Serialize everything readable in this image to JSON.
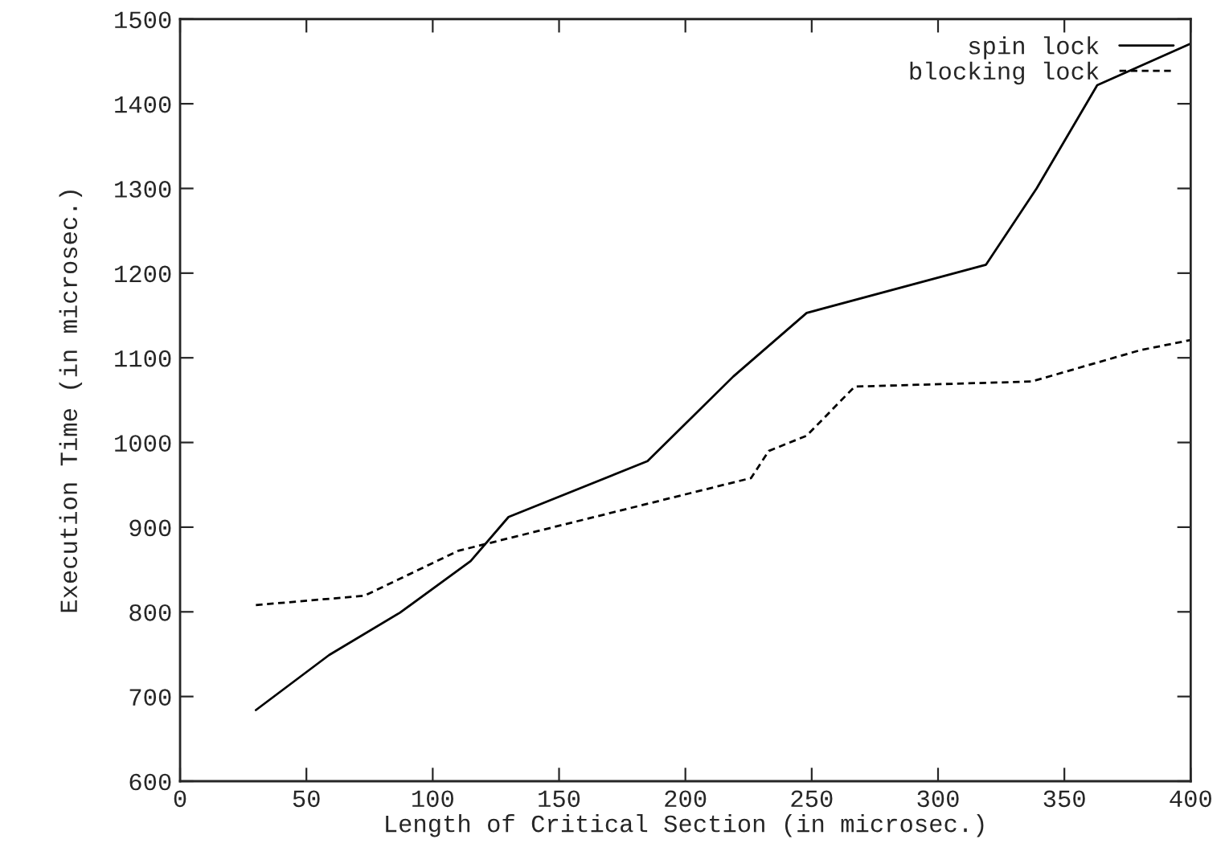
{
  "chart_data": {
    "type": "line",
    "xlabel": "Length of Critical Section (in microsec.)",
    "ylabel": "Execution Time (in microsec.)",
    "xlim": [
      0,
      400
    ],
    "xticks": [
      0,
      50,
      100,
      150,
      200,
      250,
      300,
      350,
      400
    ],
    "ylim": [
      600,
      1500
    ],
    "yticks": [
      600,
      700,
      800,
      900,
      1000,
      1100,
      1200,
      1300,
      1400,
      1500
    ],
    "grid": false,
    "legend": "top right",
    "series": [
      {
        "name": "spin lock",
        "color": "#000000",
        "line_style": "solid",
        "x": [
          30,
          59,
          87,
          115,
          130,
          185,
          219,
          248,
          319,
          339,
          363,
          400
        ],
        "values": [
          684,
          749,
          799,
          860,
          912,
          978,
          1078,
          1153,
          1210,
          1300,
          1422,
          1471
        ]
      },
      {
        "name": "blocking lock",
        "color": "#000000",
        "line_style": "dashed",
        "x": [
          30,
          73,
          110,
          226,
          233,
          248,
          267,
          337,
          380,
          400
        ],
        "values": [
          808,
          819,
          872,
          958,
          990,
          1008,
          1066,
          1072,
          1109,
          1121
        ]
      }
    ]
  }
}
